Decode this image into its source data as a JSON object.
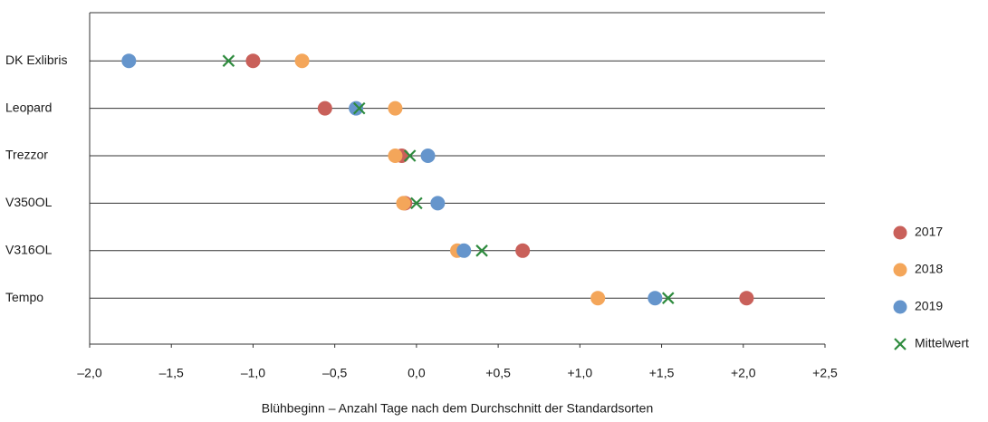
{
  "chart_data": {
    "type": "dot",
    "x_label": "Blühbeginn – Anzahl Tage nach dem Durchschnitt der Standardsorten",
    "categories": [
      "DK Exlibris",
      "Leopard",
      "Trezzor",
      "V350OL",
      "V316OL",
      "Tempo"
    ],
    "series": [
      {
        "name": "2017",
        "color": "#c9605a",
        "marker": "circle",
        "values": [
          -1.0,
          -0.56,
          -0.09,
          -0.07,
          0.65,
          2.02
        ]
      },
      {
        "name": "2018",
        "color": "#f4a65a",
        "marker": "circle",
        "values": [
          -0.7,
          -0.13,
          -0.13,
          -0.08,
          0.25,
          1.11
        ]
      },
      {
        "name": "2019",
        "color": "#6595cc",
        "marker": "circle",
        "values": [
          -1.76,
          -0.37,
          0.07,
          0.13,
          0.29,
          1.46
        ]
      },
      {
        "name": "Mittelwert",
        "color": "#2e8b3e",
        "marker": "x",
        "values": [
          -1.15,
          -0.35,
          -0.04,
          0.0,
          0.4,
          1.54
        ]
      }
    ],
    "xlim": [
      -2.0,
      2.5
    ],
    "xticks": [
      {
        "value": -2.0,
        "label": "–2,0"
      },
      {
        "value": -1.5,
        "label": "–1,5"
      },
      {
        "value": -1.0,
        "label": "–1,0"
      },
      {
        "value": -0.5,
        "label": "–0,5"
      },
      {
        "value": 0.0,
        "label": "0,0"
      },
      {
        "value": 0.5,
        "label": "+0,5"
      },
      {
        "value": 1.0,
        "label": "+1,0"
      },
      {
        "value": 1.5,
        "label": "+1,5"
      },
      {
        "value": 2.0,
        "label": "+2,0"
      },
      {
        "value": 2.5,
        "label": "+2,5"
      }
    ],
    "grid": true,
    "legend": "right"
  }
}
